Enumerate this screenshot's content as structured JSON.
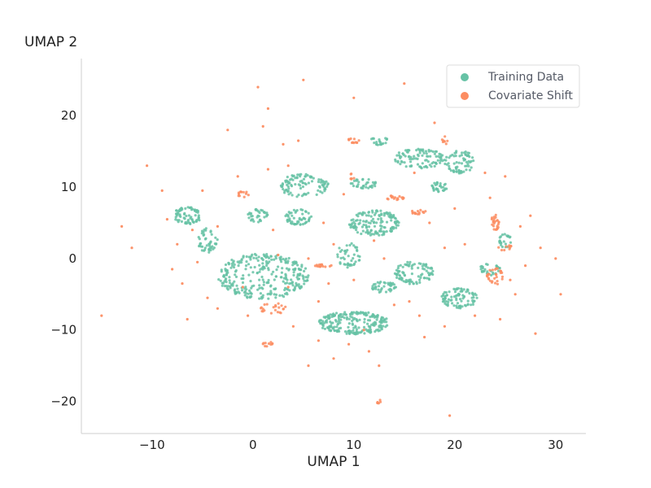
{
  "chart_data": {
    "type": "scatter",
    "title": "",
    "xlabel": "UMAP 1",
    "ylabel": "UMAP 2",
    "xlim": [
      -17,
      33
    ],
    "ylim": [
      -24.5,
      28
    ],
    "xticks": [
      -10,
      0,
      10,
      20,
      30
    ],
    "yticks": [
      -20,
      -10,
      0,
      10,
      20
    ],
    "xtick_labels": [
      "−10",
      "0",
      "10",
      "20",
      "30"
    ],
    "ytick_labels": [
      "−20",
      "−10",
      "0",
      "10",
      "20"
    ],
    "grid": false,
    "legend_position": "top-right",
    "series": [
      {
        "name": "Training Data",
        "color": "#66c2a5",
        "clusters": [
          {
            "cx": -6.5,
            "cy": 6.0,
            "rx": 1.4,
            "ry": 1.2,
            "n": 70
          },
          {
            "cx": -4.5,
            "cy": 2.5,
            "rx": 1.0,
            "ry": 1.8,
            "n": 45
          },
          {
            "cx": 0.5,
            "cy": 6.0,
            "rx": 1.0,
            "ry": 0.9,
            "n": 35
          },
          {
            "cx": 4.5,
            "cy": 5.8,
            "rx": 1.3,
            "ry": 1.1,
            "n": 55
          },
          {
            "cx": 5.0,
            "cy": 10.2,
            "rx": 2.5,
            "ry": 1.6,
            "n": 100
          },
          {
            "cx": 1.0,
            "cy": -2.5,
            "rx": 4.5,
            "ry": 3.2,
            "n": 300
          },
          {
            "cx": 9.5,
            "cy": 0.5,
            "rx": 1.2,
            "ry": 1.8,
            "n": 45
          },
          {
            "cx": 12.0,
            "cy": 5.0,
            "rx": 2.5,
            "ry": 1.8,
            "n": 150
          },
          {
            "cx": 11.0,
            "cy": 10.5,
            "rx": 1.3,
            "ry": 0.7,
            "n": 35
          },
          {
            "cx": 12.5,
            "cy": 16.5,
            "rx": 0.9,
            "ry": 0.6,
            "n": 20
          },
          {
            "cx": 16.5,
            "cy": 14.0,
            "rx": 2.5,
            "ry": 1.4,
            "n": 100
          },
          {
            "cx": 20.5,
            "cy": 13.5,
            "rx": 1.5,
            "ry": 1.6,
            "n": 70
          },
          {
            "cx": 18.5,
            "cy": 10.0,
            "rx": 0.9,
            "ry": 0.7,
            "n": 30
          },
          {
            "cx": 10.0,
            "cy": -9.0,
            "rx": 3.5,
            "ry": 1.6,
            "n": 220
          },
          {
            "cx": 13.0,
            "cy": -4.0,
            "rx": 1.2,
            "ry": 0.8,
            "n": 40
          },
          {
            "cx": 16.0,
            "cy": -2.0,
            "rx": 2.0,
            "ry": 1.6,
            "n": 90
          },
          {
            "cx": 20.5,
            "cy": -5.5,
            "rx": 1.8,
            "ry": 1.5,
            "n": 90
          },
          {
            "cx": 23.5,
            "cy": -1.5,
            "rx": 1.0,
            "ry": 0.9,
            "n": 30
          },
          {
            "cx": 25.0,
            "cy": 2.5,
            "rx": 0.6,
            "ry": 1.0,
            "n": 25
          }
        ]
      },
      {
        "name": "Covariate Shift",
        "color": "#fc8d62",
        "clusters": [
          {
            "cx": 10.0,
            "cy": 16.5,
            "rx": 0.6,
            "ry": 0.4,
            "n": 12
          },
          {
            "cx": 9.8,
            "cy": 11.5,
            "rx": 0.3,
            "ry": 0.4,
            "n": 6
          },
          {
            "cx": 14.0,
            "cy": 8.5,
            "rx": 1.0,
            "ry": 0.3,
            "n": 18
          },
          {
            "cx": 16.5,
            "cy": 6.5,
            "rx": 0.9,
            "ry": 0.3,
            "n": 14
          },
          {
            "cx": 19.0,
            "cy": 16.5,
            "rx": 0.3,
            "ry": 0.6,
            "n": 8
          },
          {
            "cx": 24.0,
            "cy": 5.0,
            "rx": 0.4,
            "ry": 1.2,
            "n": 25
          },
          {
            "cx": 25.0,
            "cy": 1.5,
            "rx": 0.8,
            "ry": 0.4,
            "n": 10
          },
          {
            "cx": 24.0,
            "cy": -2.5,
            "rx": 0.8,
            "ry": 1.2,
            "n": 30
          },
          {
            "cx": -1.0,
            "cy": 9.0,
            "rx": 0.7,
            "ry": 0.4,
            "n": 12
          },
          {
            "cx": 7.0,
            "cy": -1.0,
            "rx": 0.9,
            "ry": 0.2,
            "n": 14
          },
          {
            "cx": 2.0,
            "cy": -7.0,
            "rx": 1.3,
            "ry": 0.8,
            "n": 22
          },
          {
            "cx": 1.5,
            "cy": -12.0,
            "rx": 0.6,
            "ry": 0.4,
            "n": 10
          },
          {
            "cx": 12.5,
            "cy": -20.0,
            "rx": 0.4,
            "ry": 0.3,
            "n": 6
          }
        ],
        "scattered": [
          [
            -15,
            -8
          ],
          [
            -13,
            4.5
          ],
          [
            -12,
            1.5
          ],
          [
            -10.5,
            13
          ],
          [
            -9,
            9.5
          ],
          [
            -8.5,
            5.5
          ],
          [
            -8,
            -1.5
          ],
          [
            -7.5,
            2
          ],
          [
            -7,
            -3.5
          ],
          [
            -6.5,
            -8.5
          ],
          [
            -6,
            4
          ],
          [
            -5.5,
            -0.5
          ],
          [
            -5,
            9.5
          ],
          [
            -4.5,
            -5.5
          ],
          [
            -3.5,
            4.5
          ],
          [
            -3.5,
            -7
          ],
          [
            -2.5,
            18
          ],
          [
            -1.5,
            11.5
          ],
          [
            -1,
            -4
          ],
          [
            -0.5,
            -8
          ],
          [
            0.5,
            24
          ],
          [
            1,
            18.5
          ],
          [
            1.5,
            21
          ],
          [
            1.5,
            12.5
          ],
          [
            2,
            4
          ],
          [
            2.5,
            0.5
          ],
          [
            3,
            16
          ],
          [
            3.5,
            -4
          ],
          [
            3.5,
            13
          ],
          [
            4,
            -9.5
          ],
          [
            4.5,
            16.5
          ],
          [
            5,
            25
          ],
          [
            5.5,
            -15
          ],
          [
            5.5,
            0
          ],
          [
            6.5,
            -6
          ],
          [
            6.5,
            -11.5
          ],
          [
            7,
            5
          ],
          [
            7.5,
            -3.5
          ],
          [
            8,
            2
          ],
          [
            8,
            -14
          ],
          [
            9,
            9
          ],
          [
            9.5,
            -12
          ],
          [
            10,
            22.5
          ],
          [
            10,
            -3
          ],
          [
            11,
            -10
          ],
          [
            11.5,
            -13
          ],
          [
            12,
            2.5
          ],
          [
            12.5,
            -15
          ],
          [
            13,
            0
          ],
          [
            14,
            -6.5
          ],
          [
            15,
            24.5
          ],
          [
            15.5,
            -6
          ],
          [
            16,
            12
          ],
          [
            16.5,
            -8
          ],
          [
            17,
            -11
          ],
          [
            17.5,
            5
          ],
          [
            18,
            19
          ],
          [
            19,
            1.5
          ],
          [
            19,
            -9.5
          ],
          [
            19.5,
            -22
          ],
          [
            20,
            7
          ],
          [
            21,
            2
          ],
          [
            22,
            -8
          ],
          [
            23,
            12
          ],
          [
            23.5,
            8.5
          ],
          [
            24.5,
            -8.5
          ],
          [
            25,
            11.5
          ],
          [
            25.5,
            -3
          ],
          [
            26,
            -5
          ],
          [
            26.5,
            4.5
          ],
          [
            27,
            -1
          ],
          [
            27.5,
            6
          ],
          [
            28,
            -10.5
          ],
          [
            28.5,
            1.5
          ],
          [
            30,
            0
          ],
          [
            30.5,
            -5
          ]
        ]
      }
    ]
  }
}
